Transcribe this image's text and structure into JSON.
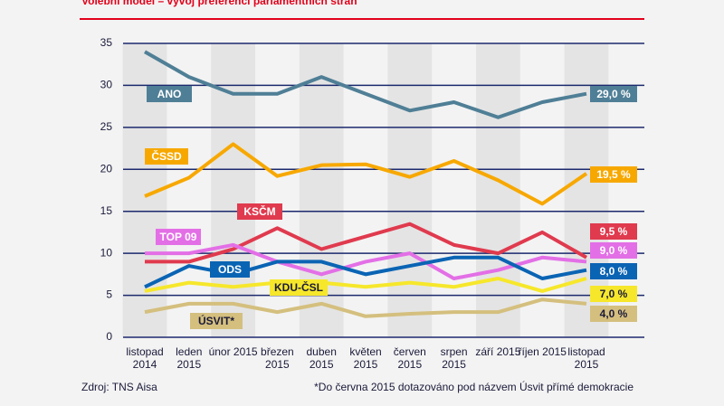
{
  "chart_data": {
    "type": "line",
    "title": "Volební model – vývoj preferencí parlamentních stran",
    "categories": [
      "listopad 2014",
      "leden 2015",
      "únor 2015",
      "březen 2015",
      "duben 2015",
      "květen 2015",
      "červen 2015",
      "srpen 2015",
      "září 2015",
      "říjen 2015",
      "listopad 2015"
    ],
    "ylim": [
      0,
      35
    ],
    "yticks": [
      0,
      5,
      10,
      15,
      20,
      25,
      30,
      35
    ],
    "grid": true,
    "series": [
      {
        "name": "ANO",
        "color": "#4f7f96",
        "values": [
          34,
          31,
          29,
          29,
          31,
          29,
          27,
          28,
          26.2,
          28,
          29.0
        ],
        "value_labels": [
          null,
          null,
          null,
          null,
          null,
          null,
          null,
          null,
          null,
          null,
          "29,0 %"
        ]
      },
      {
        "name": "ČSSD",
        "color": "#f7a800",
        "values": [
          16.8,
          19,
          23,
          19.2,
          20.5,
          20.6,
          19.1,
          21,
          18.7,
          15.9,
          19.5
        ],
        "value_labels": [
          null,
          null,
          null,
          null,
          null,
          null,
          null,
          null,
          null,
          null,
          "19,5 %"
        ]
      },
      {
        "name": "KSČM",
        "color": "#e03a4e",
        "values": [
          9,
          9,
          10.5,
          13,
          10.5,
          12,
          13.5,
          11,
          10,
          12.5,
          9.5
        ],
        "value_labels": [
          null,
          null,
          null,
          null,
          null,
          null,
          null,
          null,
          null,
          null,
          "9,5 %"
        ]
      },
      {
        "name": "TOP 09",
        "color": "#e36fe6",
        "values": [
          10,
          10,
          11,
          9,
          7.5,
          9,
          10,
          7,
          8,
          9.5,
          9.0
        ],
        "value_labels": [
          null,
          null,
          null,
          null,
          null,
          null,
          null,
          null,
          null,
          null,
          "9,0 %"
        ]
      },
      {
        "name": "ODS",
        "color": "#0a64b4",
        "values": [
          6,
          8.5,
          7.5,
          9,
          9,
          7.5,
          8.5,
          9.5,
          9.5,
          7,
          8.0
        ],
        "value_labels": [
          null,
          null,
          null,
          null,
          null,
          null,
          null,
          null,
          null,
          null,
          "8,0 %"
        ]
      },
      {
        "name": "KDU-ČSL",
        "color": "#f6e72b",
        "values": [
          5.5,
          6.5,
          6,
          6.5,
          6.5,
          6,
          6.5,
          6,
          7,
          5.5,
          7.0
        ],
        "value_labels": [
          null,
          null,
          null,
          null,
          null,
          null,
          null,
          null,
          null,
          null,
          "7,0 %"
        ]
      },
      {
        "name": "ÚSVIT*",
        "color": "#d4bf7e",
        "values": [
          3,
          4,
          4,
          3,
          4,
          2.5,
          2.8,
          3,
          3,
          4.5,
          4.0
        ],
        "value_labels": [
          null,
          null,
          null,
          null,
          null,
          null,
          null,
          null,
          null,
          null,
          "4,0 %"
        ]
      }
    ],
    "source": "Zdroj: TNS Aisa",
    "footnote": "*Do června 2015 dotazováno pod názvem Úsvit přímé demokracie"
  }
}
